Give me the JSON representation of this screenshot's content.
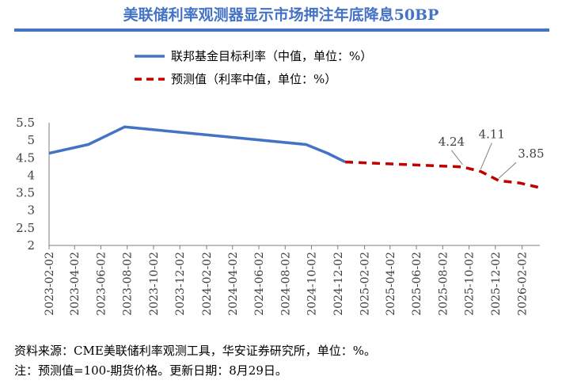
{
  "title": "美联储利率观测器显示市场押注年底降息50BP",
  "notes": {
    "source": "资料来源：CME美联储利率观测工具，华安证券研究所，单位：%。",
    "remark": "注：预测值=100-期货价格。更新日期：8月29日。"
  },
  "colors": {
    "title": "#4472c4",
    "actual": "#4472c4",
    "forecast": "#c00000"
  },
  "chart_data": {
    "type": "line",
    "title": "美联储利率观测器显示市场押注年底降息50BP",
    "xlabel": "",
    "ylabel": "",
    "ylim": [
      2,
      5.5
    ],
    "yticks": [
      "2",
      "2.5",
      "3",
      "3.5",
      "4",
      "4.5",
      "5",
      "5.5"
    ],
    "xlim": [
      "2023-02-02",
      "2026-03-15"
    ],
    "xticks": [
      "2023-02-02",
      "2023-04-02",
      "2023-06-02",
      "2023-08-02",
      "2023-10-02",
      "2023-12-02",
      "2024-02-02",
      "2024-04-02",
      "2024-06-02",
      "2024-08-02",
      "2024-10-02",
      "2024-12-02",
      "2025-02-02",
      "2025-04-02",
      "2025-06-02",
      "2025-08-02",
      "2025-10-02",
      "2025-12-02",
      "2026-02-02"
    ],
    "grid": false,
    "legend_position": "top",
    "series": [
      {
        "name": "联邦基金目标利率（中值，单位：%）",
        "style": "solid",
        "color": "#4472c4",
        "points": [
          [
            "2023-02-02",
            4.63
          ],
          [
            "2023-05-04",
            4.88
          ],
          [
            "2023-07-27",
            5.38
          ],
          [
            "2024-09-19",
            4.88
          ],
          [
            "2024-11-08",
            4.63
          ],
          [
            "2024-12-19",
            4.38
          ]
        ]
      },
      {
        "name": "预测值（利率中值，单位：%）",
        "style": "dashed",
        "color": "#c00000",
        "points": [
          [
            "2024-12-19",
            4.38
          ],
          [
            "2025-09-17",
            4.24
          ],
          [
            "2025-10-29",
            4.11
          ],
          [
            "2025-12-10",
            3.85
          ],
          [
            "2026-01-28",
            3.78
          ],
          [
            "2026-03-18",
            3.64
          ]
        ]
      }
    ],
    "annotations": [
      {
        "label": "4.24",
        "x": "2025-09-17",
        "y": 4.24
      },
      {
        "label": "4.11",
        "x": "2025-10-29",
        "y": 4.11
      },
      {
        "label": "3.85",
        "x": "2025-12-10",
        "y": 3.85
      }
    ]
  }
}
